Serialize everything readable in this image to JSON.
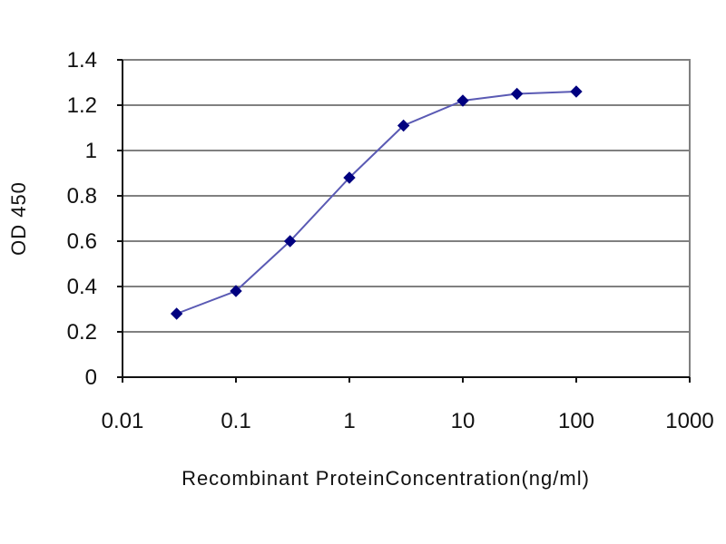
{
  "chart_data": {
    "type": "line",
    "title": "",
    "xlabel": "Recombinant ProteinConcentration(ng/ml)",
    "ylabel": "OD 450",
    "x_scale": "log",
    "xlim": [
      0.01,
      1000
    ],
    "ylim": [
      0,
      1.4
    ],
    "x_ticks": [
      "0.01",
      "0.1",
      "1",
      "10",
      "100",
      "1000"
    ],
    "y_ticks": [
      "0",
      "0.2",
      "0.4",
      "0.6",
      "0.8",
      "1",
      "1.2",
      "1.4"
    ],
    "grid": true,
    "legend": "none",
    "series": [
      {
        "color": "#5a5ab4",
        "marker_color": "#000080",
        "x": [
          0.03,
          0.1,
          0.3,
          1,
          3,
          10,
          30,
          100
        ],
        "y": [
          0.28,
          0.38,
          0.6,
          0.88,
          1.11,
          1.22,
          1.25,
          1.26
        ]
      }
    ]
  }
}
